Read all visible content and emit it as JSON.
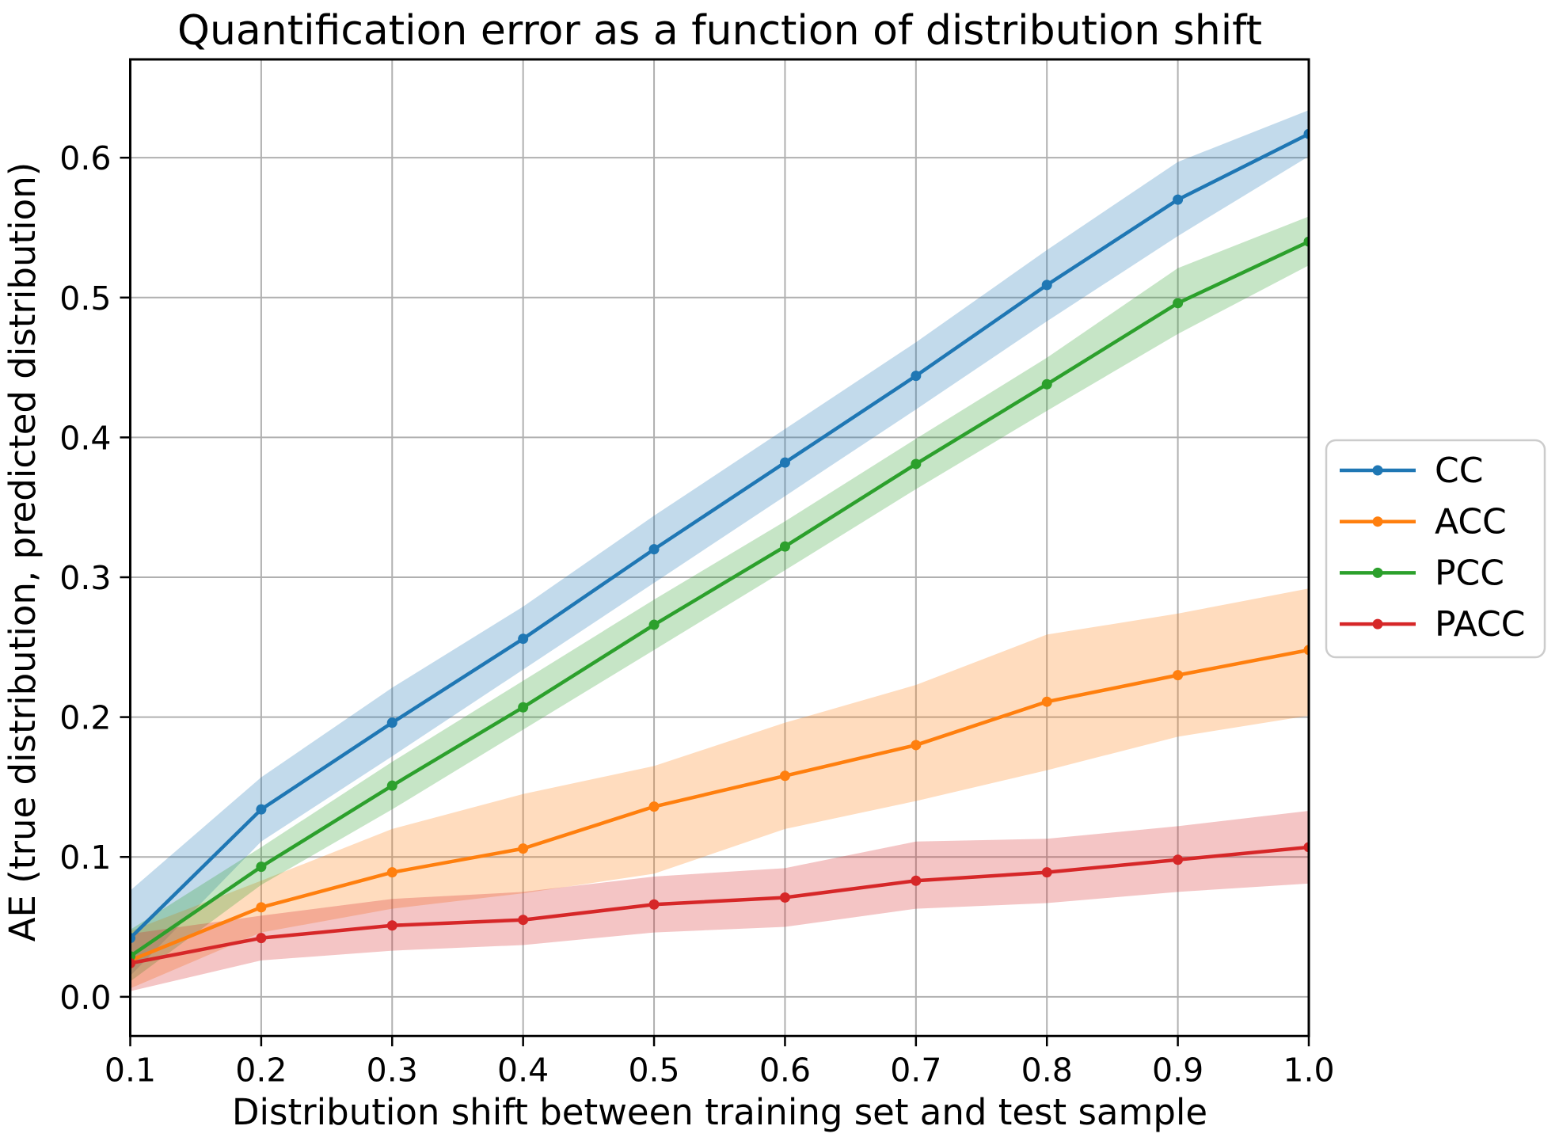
{
  "figure": {
    "background": "#ffffff",
    "grid_color": "#b0b0b0",
    "spine_color": "#000000",
    "legend_border_color": "#cccccc",
    "legend_background": "#ffffff"
  },
  "chart_data": {
    "type": "line",
    "title": "Quantification error as a function of distribution shift",
    "xlabel": "Distribution shift between training set and test sample",
    "ylabel": "AE (true distribution, predicted distribution)",
    "grid": true,
    "legend_position": "right outside, vertically centered",
    "xlim": [
      0.1,
      1.0
    ],
    "ylim": [
      -0.028,
      0.6703
    ],
    "x": [
      0.1,
      0.2,
      0.3,
      0.4,
      0.5,
      0.6,
      0.7,
      0.8,
      0.9,
      1.0
    ],
    "x_tick_labels": [
      "0.1",
      "0.2",
      "0.3",
      "0.4",
      "0.5",
      "0.6",
      "0.7",
      "0.8",
      "0.9",
      "1.0"
    ],
    "y_ticks": [
      0.0,
      0.1,
      0.2,
      0.3,
      0.4,
      0.5,
      0.6
    ],
    "y_tick_labels": [
      "0.0",
      "0.1",
      "0.2",
      "0.3",
      "0.4",
      "0.5",
      "0.6"
    ],
    "band_opacity": 0.27,
    "series": [
      {
        "name": "CC",
        "color": "#1f77b4",
        "values": [
          0.042,
          0.134,
          0.196,
          0.256,
          0.32,
          0.382,
          0.444,
          0.509,
          0.57,
          0.617
        ],
        "band_lower": [
          0.015,
          0.111,
          0.172,
          0.234,
          0.296,
          0.358,
          0.42,
          0.483,
          0.544,
          0.601
        ],
        "band_upper": [
          0.076,
          0.157,
          0.221,
          0.279,
          0.344,
          0.406,
          0.468,
          0.534,
          0.597,
          0.634
        ]
      },
      {
        "name": "ACC",
        "color": "#ff7f0e",
        "values": [
          0.026,
          0.064,
          0.089,
          0.106,
          0.136,
          0.158,
          0.18,
          0.211,
          0.23,
          0.248
        ],
        "band_lower": [
          0.006,
          0.046,
          0.063,
          0.074,
          0.088,
          0.12,
          0.14,
          0.162,
          0.186,
          0.201
        ],
        "band_upper": [
          0.047,
          0.083,
          0.12,
          0.145,
          0.165,
          0.196,
          0.223,
          0.259,
          0.274,
          0.292
        ]
      },
      {
        "name": "PCC",
        "color": "#2ca02c",
        "values": [
          0.029,
          0.093,
          0.151,
          0.207,
          0.266,
          0.322,
          0.381,
          0.438,
          0.496,
          0.54
        ],
        "band_lower": [
          0.011,
          0.08,
          0.134,
          0.191,
          0.248,
          0.305,
          0.363,
          0.419,
          0.474,
          0.523
        ],
        "band_upper": [
          0.048,
          0.107,
          0.168,
          0.226,
          0.284,
          0.34,
          0.399,
          0.457,
          0.521,
          0.558
        ]
      },
      {
        "name": "PACC",
        "color": "#d62728",
        "values": [
          0.024,
          0.042,
          0.051,
          0.055,
          0.066,
          0.071,
          0.083,
          0.089,
          0.098,
          0.107
        ],
        "band_lower": [
          0.004,
          0.026,
          0.033,
          0.037,
          0.046,
          0.05,
          0.063,
          0.067,
          0.075,
          0.081
        ],
        "band_upper": [
          0.045,
          0.058,
          0.07,
          0.075,
          0.086,
          0.092,
          0.111,
          0.113,
          0.122,
          0.133
        ]
      }
    ]
  }
}
